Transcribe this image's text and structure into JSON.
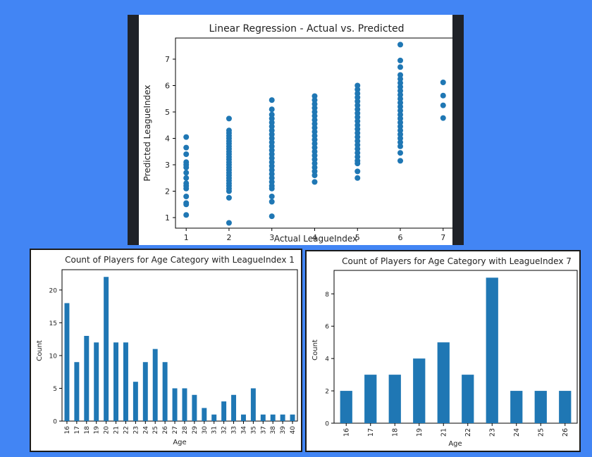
{
  "colors": {
    "background": "#4285f4",
    "marker": "#1f77b4",
    "bar": "#1f77b4",
    "dark_frame": "#1f2228"
  },
  "chart_data": [
    {
      "type": "scatter",
      "title": "Linear Regression - Actual vs. Predicted",
      "xlabel": "Actual LeagueIndex",
      "ylabel": "Predicted LeagueIndex",
      "xlim": [
        0.75,
        7.3
      ],
      "ylim": [
        0.6,
        7.8
      ],
      "xticks": [
        1,
        2,
        3,
        4,
        5,
        6,
        7
      ],
      "yticks": [
        1,
        2,
        3,
        4,
        5,
        6,
        7
      ],
      "series": [
        {
          "points": [
            [
              1,
              4.05
            ],
            [
              1,
              3.65
            ],
            [
              1,
              3.4
            ],
            [
              1,
              3.1
            ],
            [
              1,
              3.0
            ],
            [
              1,
              2.9
            ],
            [
              1,
              2.7
            ],
            [
              1,
              2.5
            ],
            [
              1,
              2.3
            ],
            [
              1,
              2.2
            ],
            [
              1,
              2.1
            ],
            [
              1,
              1.8
            ],
            [
              1,
              1.55
            ],
            [
              1,
              1.5
            ],
            [
              1,
              1.1
            ],
            [
              2,
              4.75
            ],
            [
              2,
              4.3
            ],
            [
              2,
              4.2
            ],
            [
              2,
              4.1
            ],
            [
              2,
              4.0
            ],
            [
              2,
              3.9
            ],
            [
              2,
              3.8
            ],
            [
              2,
              3.7
            ],
            [
              2,
              3.6
            ],
            [
              2,
              3.5
            ],
            [
              2,
              3.4
            ],
            [
              2,
              3.3
            ],
            [
              2,
              3.2
            ],
            [
              2,
              3.1
            ],
            [
              2,
              3.0
            ],
            [
              2,
              2.9
            ],
            [
              2,
              2.8
            ],
            [
              2,
              2.7
            ],
            [
              2,
              2.6
            ],
            [
              2,
              2.5
            ],
            [
              2,
              2.4
            ],
            [
              2,
              2.3
            ],
            [
              2,
              2.2
            ],
            [
              2,
              2.1
            ],
            [
              2,
              2.0
            ],
            [
              2,
              1.75
            ],
            [
              2,
              0.8
            ],
            [
              3,
              5.45
            ],
            [
              3,
              5.1
            ],
            [
              3,
              4.9
            ],
            [
              3,
              4.75
            ],
            [
              3,
              4.6
            ],
            [
              3,
              4.45
            ],
            [
              3,
              4.3
            ],
            [
              3,
              4.15
            ],
            [
              3,
              4.0
            ],
            [
              3,
              3.85
            ],
            [
              3,
              3.7
            ],
            [
              3,
              3.55
            ],
            [
              3,
              3.4
            ],
            [
              3,
              3.25
            ],
            [
              3,
              3.1
            ],
            [
              3,
              2.95
            ],
            [
              3,
              2.8
            ],
            [
              3,
              2.65
            ],
            [
              3,
              2.5
            ],
            [
              3,
              2.35
            ],
            [
              3,
              2.2
            ],
            [
              3,
              2.1
            ],
            [
              3,
              1.8
            ],
            [
              3,
              1.6
            ],
            [
              3,
              1.05
            ],
            [
              4,
              5.6
            ],
            [
              4,
              5.45
            ],
            [
              4,
              5.3
            ],
            [
              4,
              5.15
            ],
            [
              4,
              5.0
            ],
            [
              4,
              4.85
            ],
            [
              4,
              4.7
            ],
            [
              4,
              4.55
            ],
            [
              4,
              4.4
            ],
            [
              4,
              4.25
            ],
            [
              4,
              4.1
            ],
            [
              4,
              3.95
            ],
            [
              4,
              3.8
            ],
            [
              4,
              3.65
            ],
            [
              4,
              3.5
            ],
            [
              4,
              3.35
            ],
            [
              4,
              3.2
            ],
            [
              4,
              3.05
            ],
            [
              4,
              2.9
            ],
            [
              4,
              2.75
            ],
            [
              4,
              2.6
            ],
            [
              4,
              2.35
            ],
            [
              5,
              6.0
            ],
            [
              5,
              5.85
            ],
            [
              5,
              5.7
            ],
            [
              5,
              5.55
            ],
            [
              5,
              5.4
            ],
            [
              5,
              5.25
            ],
            [
              5,
              5.1
            ],
            [
              5,
              4.95
            ],
            [
              5,
              4.8
            ],
            [
              5,
              4.65
            ],
            [
              5,
              4.5
            ],
            [
              5,
              4.35
            ],
            [
              5,
              4.2
            ],
            [
              5,
              4.05
            ],
            [
              5,
              3.9
            ],
            [
              5,
              3.75
            ],
            [
              5,
              3.6
            ],
            [
              5,
              3.45
            ],
            [
              5,
              3.3
            ],
            [
              5,
              3.15
            ],
            [
              5,
              3.05
            ],
            [
              5,
              2.75
            ],
            [
              5,
              2.5
            ],
            [
              6,
              7.55
            ],
            [
              6,
              6.95
            ],
            [
              6,
              6.7
            ],
            [
              6,
              6.4
            ],
            [
              6,
              6.25
            ],
            [
              6,
              6.1
            ],
            [
              6,
              5.95
            ],
            [
              6,
              5.8
            ],
            [
              6,
              5.65
            ],
            [
              6,
              5.5
            ],
            [
              6,
              5.35
            ],
            [
              6,
              5.2
            ],
            [
              6,
              5.05
            ],
            [
              6,
              4.9
            ],
            [
              6,
              4.75
            ],
            [
              6,
              4.6
            ],
            [
              6,
              4.45
            ],
            [
              6,
              4.3
            ],
            [
              6,
              4.15
            ],
            [
              6,
              4.0
            ],
            [
              6,
              3.85
            ],
            [
              6,
              3.7
            ],
            [
              6,
              3.45
            ],
            [
              6,
              3.15
            ],
            [
              7,
              6.12
            ],
            [
              7,
              5.62
            ],
            [
              7,
              5.25
            ],
            [
              7,
              4.77
            ]
          ]
        }
      ],
      "grid": false
    },
    {
      "type": "bar",
      "title": "Count of Players for Age Category with LeagueIndex 1",
      "xlabel": "Age",
      "ylabel": "Count",
      "categories": [
        "16",
        "17",
        "18",
        "19",
        "20",
        "21",
        "22",
        "23",
        "24",
        "25",
        "26",
        "27",
        "28",
        "29",
        "30",
        "31",
        "32",
        "33",
        "34",
        "35",
        "37",
        "38",
        "39",
        "40"
      ],
      "values": [
        18,
        9,
        13,
        12,
        22,
        12,
        12,
        6,
        9,
        11,
        9,
        5,
        5,
        4,
        2,
        1,
        3,
        4,
        1,
        5,
        1,
        1,
        1,
        1
      ],
      "ylim": [
        0,
        23.1
      ],
      "yticks": [
        0,
        5,
        10,
        15,
        20
      ]
    },
    {
      "type": "bar",
      "title": "Count of Players for Age Category with LeagueIndex 7",
      "xlabel": "Age",
      "ylabel": "Count",
      "categories": [
        "16",
        "17",
        "18",
        "19",
        "21",
        "22",
        "23",
        "24",
        "25",
        "26"
      ],
      "values": [
        2,
        3,
        3,
        4,
        5,
        3,
        9,
        2,
        2,
        2
      ],
      "ylim": [
        0,
        9.45
      ],
      "yticks": [
        0,
        2,
        4,
        6,
        8
      ]
    }
  ]
}
